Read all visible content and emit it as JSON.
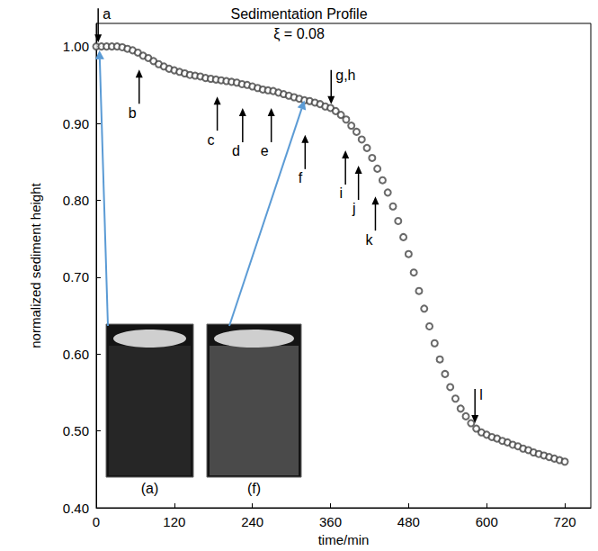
{
  "chart_data": {
    "type": "scatter",
    "title": "Sedimentation Profile",
    "subtitle": "ξ = 0.08",
    "x_label": "time/min",
    "y_label": "normalized sediment height",
    "marker": "emptyCircle",
    "color": "#444444",
    "grid": false,
    "xlim": [
      0,
      760
    ],
    "xticks": [
      0,
      120,
      240,
      360,
      480,
      600,
      720
    ],
    "ylim": [
      0.4,
      1.03
    ],
    "yticks": [
      {
        "value": 0.4,
        "label": "0.40"
      },
      {
        "value": 0.5,
        "label": "0.50"
      },
      {
        "value": 0.6,
        "label": "0.60"
      },
      {
        "value": 0.7,
        "label": "0.70"
      },
      {
        "value": 0.8,
        "label": "0.80"
      },
      {
        "value": 0.9,
        "label": "0.90"
      },
      {
        "value": 1.0,
        "label": "1.00"
      }
    ],
    "x": [
      0,
      8,
      16,
      24,
      32,
      40,
      48,
      56,
      64,
      72,
      80,
      88,
      96,
      104,
      112,
      120,
      128,
      136,
      144,
      152,
      160,
      168,
      176,
      184,
      192,
      200,
      208,
      216,
      224,
      232,
      240,
      248,
      256,
      264,
      272,
      280,
      288,
      296,
      304,
      312,
      320,
      328,
      336,
      344,
      352,
      360,
      368,
      376,
      384,
      392,
      400,
      408,
      416,
      424,
      432,
      440,
      448,
      456,
      464,
      472,
      480,
      488,
      496,
      504,
      512,
      520,
      528,
      536,
      544,
      552,
      560,
      568,
      576,
      584,
      592,
      600,
      608,
      616,
      624,
      632,
      640,
      648,
      656,
      664,
      672,
      680,
      688,
      696,
      704,
      712,
      720
    ],
    "values": [
      1.0,
      1.0,
      1.0,
      1.0,
      1.0,
      0.999,
      0.997,
      0.995,
      0.992,
      0.988,
      0.985,
      0.981,
      0.977,
      0.974,
      0.971,
      0.969,
      0.967,
      0.965,
      0.963,
      0.962,
      0.961,
      0.959,
      0.958,
      0.957,
      0.956,
      0.955,
      0.954,
      0.953,
      0.951,
      0.95,
      0.948,
      0.946,
      0.944,
      0.943,
      0.942,
      0.94,
      0.938,
      0.936,
      0.934,
      0.932,
      0.93,
      0.929,
      0.927,
      0.925,
      0.922,
      0.92,
      0.916,
      0.911,
      0.905,
      0.897,
      0.889,
      0.879,
      0.868,
      0.855,
      0.841,
      0.826,
      0.81,
      0.792,
      0.773,
      0.752,
      0.73,
      0.706,
      0.682,
      0.659,
      0.636,
      0.614,
      0.593,
      0.574,
      0.557,
      0.542,
      0.529,
      0.519,
      0.51,
      0.503,
      0.498,
      0.495,
      0.492,
      0.49,
      0.487,
      0.485,
      0.482,
      0.48,
      0.477,
      0.475,
      0.472,
      0.47,
      0.468,
      0.466,
      0.464,
      0.462,
      0.46
    ],
    "annotations": [
      {
        "label": "a",
        "x": 3,
        "y": 1.005,
        "arrow": "down"
      },
      {
        "label": "b",
        "x": 66,
        "y": 0.97,
        "arrow": "up"
      },
      {
        "label": "c",
        "x": 186,
        "y": 0.935,
        "arrow": "up"
      },
      {
        "label": "d",
        "x": 225,
        "y": 0.92,
        "arrow": "up"
      },
      {
        "label": "e",
        "x": 269,
        "y": 0.92,
        "arrow": "up"
      },
      {
        "label": "f",
        "x": 321,
        "y": 0.885,
        "arrow": "up"
      },
      {
        "label": "g,h",
        "x": 361,
        "y": 0.925,
        "arrow": "down"
      },
      {
        "label": "i",
        "x": 383,
        "y": 0.865,
        "arrow": "up"
      },
      {
        "label": "j",
        "x": 403,
        "y": 0.845,
        "arrow": "up"
      },
      {
        "label": "k",
        "x": 429,
        "y": 0.805,
        "arrow": "up"
      },
      {
        "label": "l",
        "x": 582,
        "y": 0.51,
        "arrow": "down"
      }
    ],
    "insets": [
      {
        "label": "(a)",
        "x": 5,
        "y": 0.995
      },
      {
        "label": "(f)",
        "x": 320,
        "y": 0.93
      }
    ]
  }
}
